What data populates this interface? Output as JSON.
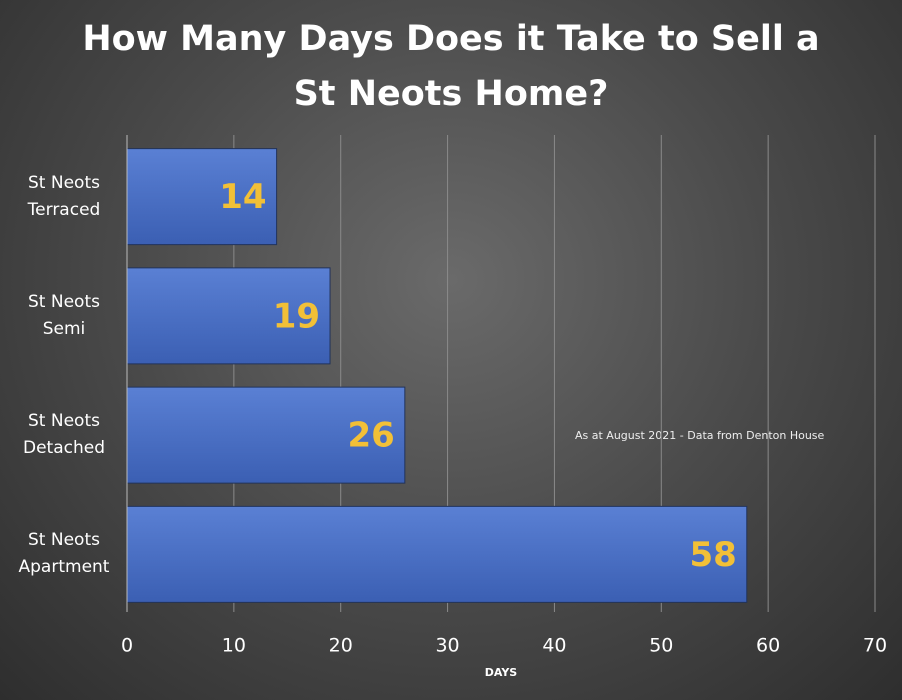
{
  "chart_data": {
    "type": "hbar",
    "title": "How Many Days Does it Take to Sell a St Neots Home?",
    "categories": [
      "St Neots Terraced",
      "St Neots Semi",
      "St Neots Detached",
      "St Neots Apartment"
    ],
    "values": [
      14,
      19,
      26,
      58
    ],
    "color": "#4a72c8",
    "label_color": "#f2c037",
    "xlabel": "DAYS",
    "annotation": "As at August 2021 - Data from Denton House",
    "xlim": [
      0,
      70
    ],
    "xticks": [
      0,
      10,
      20,
      30,
      40,
      50,
      60,
      70
    ],
    "grid": true
  }
}
